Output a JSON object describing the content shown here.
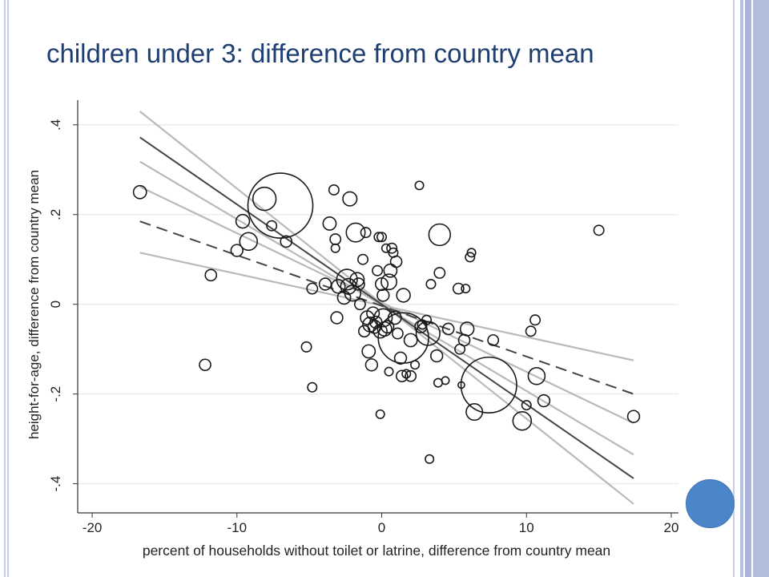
{
  "slide": {
    "title": "children under 3: difference from country mean"
  },
  "chart_data": {
    "type": "scatter",
    "title": "",
    "xlabel": "percent of households without toilet or latrine, difference from country mean",
    "ylabel": "height-for-age, difference from country mean",
    "xlim": [
      -21,
      20.5
    ],
    "ylim": [
      -0.465,
      0.455
    ],
    "xticks": [
      -20,
      -10,
      0,
      10,
      20
    ],
    "xtick_labels": [
      "-20",
      "-10",
      "0",
      "10",
      "20"
    ],
    "yticks": [
      -0.4,
      -0.2,
      0,
      0.2,
      0.4
    ],
    "ytick_labels": [
      "-.4",
      "-.2",
      "0",
      ".2",
      ".4"
    ],
    "grid": true,
    "legend": "none",
    "colors": {
      "marker": "#1a1a1a",
      "fit_line": "#444444",
      "ci_band": "#b9b9b9",
      "grid": "#e6ecf3",
      "axis": "#333333"
    },
    "points": [
      {
        "x": -16.7,
        "y": 0.25,
        "w": 1.2
      },
      {
        "x": -12.2,
        "y": -0.135,
        "w": 0.9
      },
      {
        "x": -11.8,
        "y": 0.065,
        "w": 0.9
      },
      {
        "x": -9.6,
        "y": 0.185,
        "w": 1.3
      },
      {
        "x": -9.2,
        "y": 0.14,
        "w": 2.2
      },
      {
        "x": -10,
        "y": 0.12,
        "w": 1
      },
      {
        "x": -8.1,
        "y": 0.235,
        "w": 3.8
      },
      {
        "x": -7.0,
        "y": 0.22,
        "w": 30
      },
      {
        "x": -7.6,
        "y": 0.175,
        "w": 0.7
      },
      {
        "x": -6.6,
        "y": 0.14,
        "w": 0.9
      },
      {
        "x": -5.2,
        "y": -0.095,
        "w": 0.7
      },
      {
        "x": -4.8,
        "y": -0.185,
        "w": 0.6
      },
      {
        "x": -4.8,
        "y": 0.035,
        "w": 0.8
      },
      {
        "x": -3.9,
        "y": 0.045,
        "w": 1
      },
      {
        "x": -3.6,
        "y": 0.18,
        "w": 1.2
      },
      {
        "x": -3.3,
        "y": 0.255,
        "w": 0.7
      },
      {
        "x": -3.2,
        "y": 0.145,
        "w": 0.8
      },
      {
        "x": -3.2,
        "y": 0.125,
        "w": 0.5
      },
      {
        "x": -3.1,
        "y": -0.03,
        "w": 1
      },
      {
        "x": -3.0,
        "y": 0.04,
        "w": 1.3
      },
      {
        "x": -2.6,
        "y": 0.015,
        "w": 1.2
      },
      {
        "x": -2.4,
        "y": 0.055,
        "w": 3
      },
      {
        "x": -2.3,
        "y": 0.04,
        "w": 1.7
      },
      {
        "x": -2.2,
        "y": 0.235,
        "w": 1.4
      },
      {
        "x": -2.0,
        "y": 0.025,
        "w": 1.8
      },
      {
        "x": -1.7,
        "y": 0.055,
        "w": 1.4
      },
      {
        "x": -1.8,
        "y": 0.16,
        "w": 2.5
      },
      {
        "x": -1.6,
        "y": 0.045,
        "w": 1
      },
      {
        "x": -1.5,
        "y": 0.0,
        "w": 0.8
      },
      {
        "x": -1.3,
        "y": 0.1,
        "w": 0.7
      },
      {
        "x": -1.2,
        "y": -0.06,
        "w": 0.9
      },
      {
        "x": -1.1,
        "y": 0.16,
        "w": 0.7
      },
      {
        "x": -1.0,
        "y": -0.03,
        "w": 1.3
      },
      {
        "x": -0.9,
        "y": -0.105,
        "w": 1.2
      },
      {
        "x": -0.8,
        "y": -0.045,
        "w": 1.5
      },
      {
        "x": -0.7,
        "y": -0.135,
        "w": 1
      },
      {
        "x": -0.6,
        "y": -0.02,
        "w": 1.1
      },
      {
        "x": -0.5,
        "y": -0.05,
        "w": 1.2
      },
      {
        "x": -0.4,
        "y": -0.04,
        "w": 1
      },
      {
        "x": -0.3,
        "y": 0.075,
        "w": 0.7
      },
      {
        "x": -0.2,
        "y": 0.15,
        "w": 0.6
      },
      {
        "x": 0.0,
        "y": 0.15,
        "w": 0.6
      },
      {
        "x": -0.1,
        "y": -0.06,
        "w": 1.3
      },
      {
        "x": -0.1,
        "y": -0.245,
        "w": 0.5
      },
      {
        "x": 0.0,
        "y": 0.045,
        "w": 1.1
      },
      {
        "x": 0.1,
        "y": 0.02,
        "w": 1
      },
      {
        "x": 0.1,
        "y": -0.03,
        "w": 2.3
      },
      {
        "x": 0.2,
        "y": -0.055,
        "w": 1.4
      },
      {
        "x": 0.3,
        "y": 0.125,
        "w": 0.5
      },
      {
        "x": 0.4,
        "y": -0.05,
        "w": 1.1
      },
      {
        "x": 0.5,
        "y": 0.05,
        "w": 1.7
      },
      {
        "x": 0.6,
        "y": 0.075,
        "w": 1.2
      },
      {
        "x": 0.5,
        "y": -0.15,
        "w": 0.5
      },
      {
        "x": 0.7,
        "y": 0.125,
        "w": 0.7
      },
      {
        "x": 0.8,
        "y": 0.115,
        "w": 0.6
      },
      {
        "x": 0.9,
        "y": -0.03,
        "w": 1.2
      },
      {
        "x": 1.0,
        "y": 0.095,
        "w": 0.9
      },
      {
        "x": 1.1,
        "y": -0.065,
        "w": 0.8
      },
      {
        "x": 1.3,
        "y": -0.12,
        "w": 1
      },
      {
        "x": 1.4,
        "y": -0.16,
        "w": 0.9
      },
      {
        "x": 1.5,
        "y": -0.075,
        "w": 18
      },
      {
        "x": 1.5,
        "y": 0.02,
        "w": 1.3
      },
      {
        "x": 1.7,
        "y": -0.155,
        "w": 0.5
      },
      {
        "x": 2.0,
        "y": -0.16,
        "w": 0.8
      },
      {
        "x": 2.0,
        "y": -0.08,
        "w": 1.2
      },
      {
        "x": 2.3,
        "y": -0.135,
        "w": 0.5
      },
      {
        "x": 2.6,
        "y": 0.265,
        "w": 0.5
      },
      {
        "x": 2.7,
        "y": -0.05,
        "w": 1
      },
      {
        "x": 2.8,
        "y": -0.045,
        "w": 0.6
      },
      {
        "x": 3.1,
        "y": -0.035,
        "w": 0.6
      },
      {
        "x": 3.2,
        "y": -0.065,
        "w": 4
      },
      {
        "x": 3.3,
        "y": -0.345,
        "w": 0.5
      },
      {
        "x": 3.4,
        "y": 0.045,
        "w": 0.6
      },
      {
        "x": 3.8,
        "y": -0.115,
        "w": 1
      },
      {
        "x": 3.9,
        "y": -0.175,
        "w": 0.5
      },
      {
        "x": 4.0,
        "y": 0.155,
        "w": 3.3
      },
      {
        "x": 4.0,
        "y": 0.07,
        "w": 0.8
      },
      {
        "x": 4.4,
        "y": -0.17,
        "w": 0.4
      },
      {
        "x": 4.6,
        "y": -0.055,
        "w": 0.9
      },
      {
        "x": 5.3,
        "y": 0.035,
        "w": 0.8
      },
      {
        "x": 5.4,
        "y": -0.1,
        "w": 0.7
      },
      {
        "x": 5.5,
        "y": -0.18,
        "w": 0.3
      },
      {
        "x": 5.7,
        "y": -0.08,
        "w": 0.9
      },
      {
        "x": 5.8,
        "y": 0.035,
        "w": 0.5
      },
      {
        "x": 5.9,
        "y": -0.055,
        "w": 1.3
      },
      {
        "x": 6.1,
        "y": 0.105,
        "w": 0.6
      },
      {
        "x": 6.2,
        "y": 0.115,
        "w": 0.5
      },
      {
        "x": 6.4,
        "y": -0.24,
        "w": 1.9
      },
      {
        "x": 7.4,
        "y": -0.18,
        "w": 22
      },
      {
        "x": 7.7,
        "y": -0.08,
        "w": 0.8
      },
      {
        "x": 9.7,
        "y": -0.26,
        "w": 2.4
      },
      {
        "x": 10.0,
        "y": -0.225,
        "w": 0.6
      },
      {
        "x": 10.3,
        "y": -0.06,
        "w": 0.7
      },
      {
        "x": 10.6,
        "y": -0.035,
        "w": 0.7
      },
      {
        "x": 10.7,
        "y": -0.16,
        "w": 2
      },
      {
        "x": 11.2,
        "y": -0.215,
        "w": 1
      },
      {
        "x": 15.0,
        "y": 0.165,
        "w": 0.7
      },
      {
        "x": 17.4,
        "y": -0.25,
        "w": 1
      }
    ],
    "lines": [
      {
        "kind": "fit",
        "style": "solid",
        "x": [
          -16.7,
          17.4
        ],
        "y": [
          0.372,
          -0.388
        ]
      },
      {
        "kind": "fit",
        "style": "dashed",
        "x": [
          -16.7,
          17.4
        ],
        "y": [
          0.185,
          -0.2
        ]
      },
      {
        "kind": "ci",
        "style": "solid",
        "x": [
          -16.7,
          17.4
        ],
        "y": [
          0.43,
          -0.445
        ]
      },
      {
        "kind": "ci",
        "style": "solid",
        "x": [
          -16.7,
          17.4
        ],
        "y": [
          0.318,
          -0.335
        ]
      },
      {
        "kind": "ci",
        "style": "solid",
        "x": [
          -16.7,
          17.4
        ],
        "y": [
          0.262,
          -0.265
        ]
      },
      {
        "kind": "ci",
        "style": "solid",
        "x": [
          -16.7,
          17.4
        ],
        "y": [
          0.115,
          -0.125
        ]
      }
    ]
  }
}
